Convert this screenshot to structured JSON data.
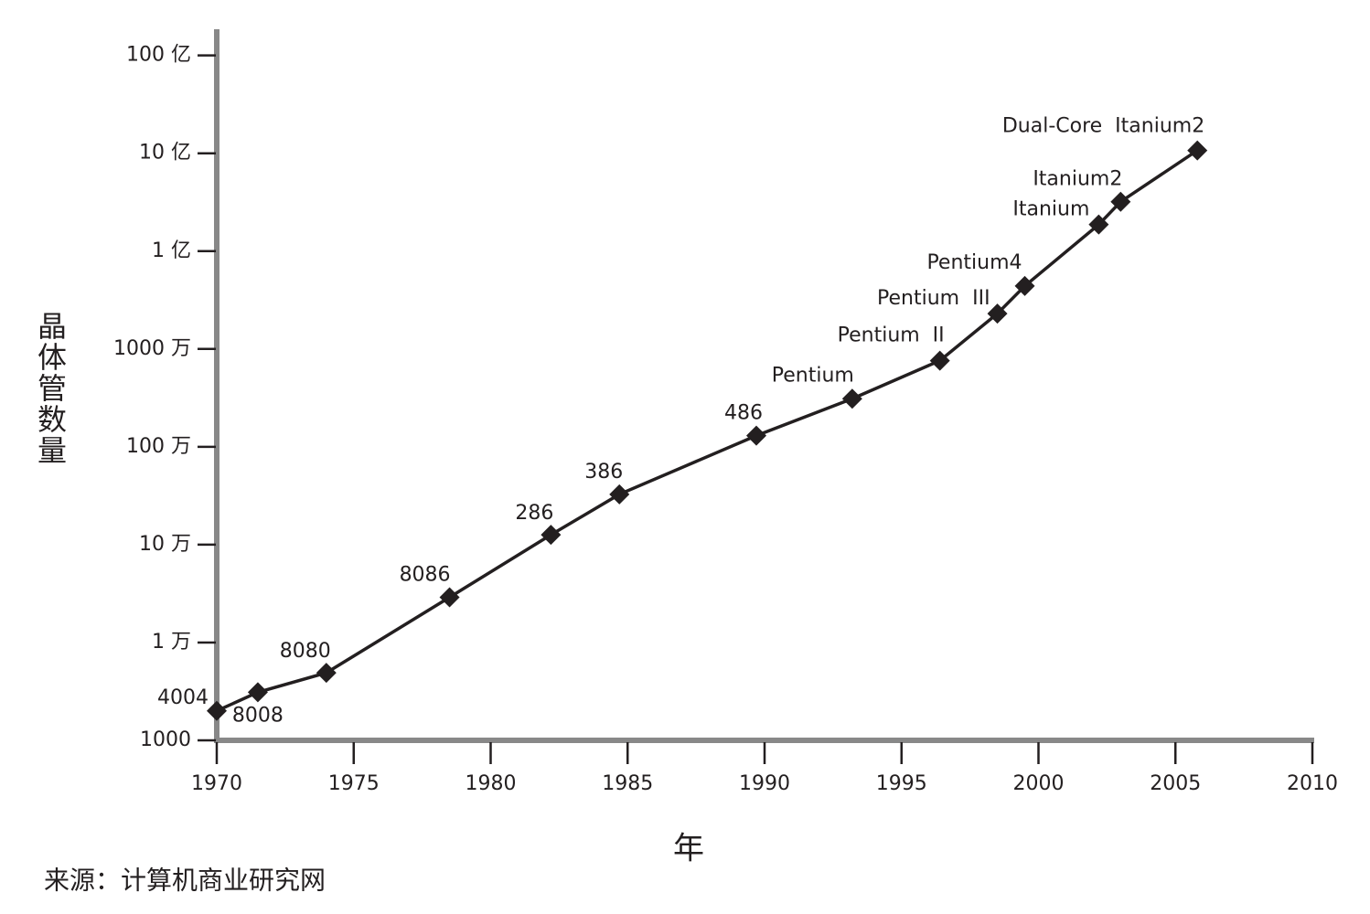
{
  "chart_data": {
    "type": "line",
    "x_label": "年",
    "y_label": "晶体管数量",
    "source": "来源：计算机商业研究网",
    "xlim": [
      1970,
      2010
    ],
    "xticks": [
      1970,
      1975,
      1980,
      1985,
      1990,
      1995,
      2000,
      2005,
      2010
    ],
    "ylim": [
      1000,
      17000000000
    ],
    "log_scale_y": true,
    "yticks": [
      1000,
      {
        "value": 10000,
        "label": "1 万"
      },
      {
        "value": 100000,
        "label": "10 万"
      },
      {
        "value": 1000000,
        "label": "100 万"
      },
      {
        "value": 10000000,
        "label": "1000 万"
      },
      {
        "value": 100000000,
        "label": "1 亿"
      },
      {
        "value": 1000000000,
        "label": "10 亿"
      },
      {
        "value": 10000000000,
        "label": "100 亿"
      }
    ],
    "series": [
      {
        "color": "#231f20",
        "labels": [
          "4004",
          "8008",
          "8080",
          "8086",
          "286",
          "386",
          "486",
          "Pentium",
          "Pentium  II",
          "Pentium  III",
          "Pentium4",
          "Itanium",
          "Itanium2",
          "Dual-Core  Itanium2"
        ],
        "x": [
          1970.0,
          1971.5,
          1974.0,
          1978.5,
          1982.2,
          1984.7,
          1989.7,
          1993.2,
          1996.4,
          1998.5,
          1999.5,
          2002.2,
          2003.0,
          2005.8
        ],
        "values": [
          2000,
          3100,
          4900,
          29000,
          126000,
          327000,
          1300000,
          3100000,
          7600000,
          23000000,
          44000000,
          187000000,
          320000000,
          1070000000
        ]
      }
    ]
  }
}
